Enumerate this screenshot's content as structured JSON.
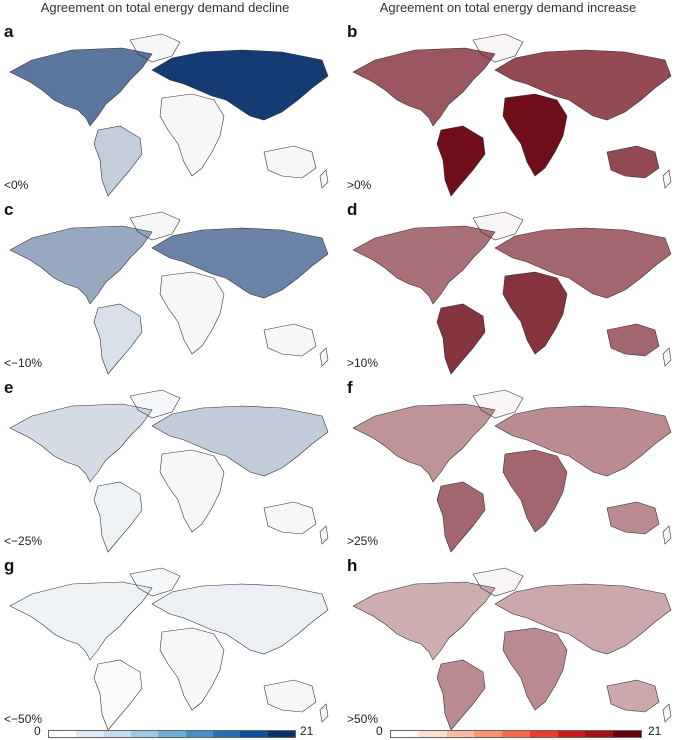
{
  "titles": {
    "left": "Agreement on total energy demand decline",
    "right": "Agreement on total energy demand increase"
  },
  "panels": [
    {
      "label": "a",
      "threshold": "<0%",
      "side": "decline",
      "level": 0.95
    },
    {
      "label": "b",
      "threshold": ">0%",
      "side": "increase",
      "level": 0.95
    },
    {
      "label": "c",
      "threshold": "<−10%",
      "side": "decline",
      "level": 0.6
    },
    {
      "label": "d",
      "threshold": ">10%",
      "side": "increase",
      "level": 0.8
    },
    {
      "label": "e",
      "threshold": "<−25%",
      "side": "decline",
      "level": 0.25
    },
    {
      "label": "f",
      "threshold": ">25%",
      "side": "increase",
      "level": 0.6
    },
    {
      "label": "g",
      "threshold": "<−50%",
      "side": "decline",
      "level": 0.08
    },
    {
      "label": "h",
      "threshold": ">50%",
      "side": "increase",
      "level": 0.45
    }
  ],
  "colorbar": {
    "min": "0",
    "max": "21",
    "blues": [
      "#ffffff",
      "#deebf7",
      "#c6dbef",
      "#9ecae1",
      "#6baed6",
      "#4292c6",
      "#2171b5",
      "#08519c",
      "#08306b"
    ],
    "reds": [
      "#ffffff",
      "#fee0d2",
      "#fcbba1",
      "#fc9272",
      "#fb6a4a",
      "#ef3b2c",
      "#cb181d",
      "#a50f15",
      "#67000d"
    ]
  }
}
